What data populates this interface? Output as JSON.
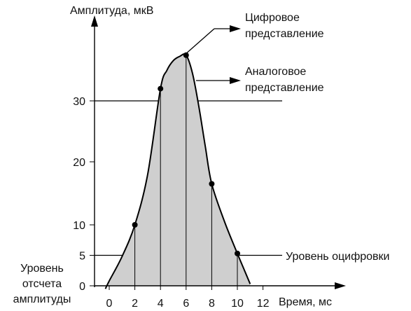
{
  "title": "",
  "y_axis_label": "Амплитуда, мкВ",
  "x_axis_label": "Время, мс",
  "origin_label_lines": [
    "Уровень",
    "отсчета",
    "амплитуды"
  ],
  "annotations": {
    "digital": [
      "Цифровое",
      "представление"
    ],
    "analog": [
      "Аналоговое",
      "представление"
    ],
    "quantization": "Уровень оцифровки"
  },
  "chart_data": {
    "type": "line",
    "title": "",
    "xlabel": "Время, мс",
    "ylabel": "Амплитуда, мкВ",
    "x_ticks": [
      "0",
      "2",
      "4",
      "6",
      "8",
      "10",
      "12"
    ],
    "y_ticks": [
      "0",
      "5",
      "10",
      "20",
      "30"
    ],
    "xlim": [
      -0.8,
      12.2
    ],
    "ylim": [
      0,
      38
    ],
    "grid": false,
    "analog_curve": {
      "x": [
        -0.3,
        0,
        1,
        2,
        3,
        4,
        4.5,
        5,
        5.5,
        6,
        6.5,
        7,
        7.5,
        8,
        9,
        10,
        10.5,
        11
      ],
      "y": [
        -0.5,
        0.8,
        4.8,
        10,
        18,
        32,
        35,
        36.6,
        37.3,
        37.5,
        34.5,
        29,
        22.5,
        16.5,
        10.5,
        5.3,
        2.8,
        0.3
      ]
    },
    "digital_samples": {
      "x": [
        2,
        4,
        6,
        8,
        10
      ],
      "y": [
        10,
        32,
        37.5,
        16.5,
        5.3
      ]
    },
    "horizontal_levels": [
      30,
      5
    ]
  }
}
